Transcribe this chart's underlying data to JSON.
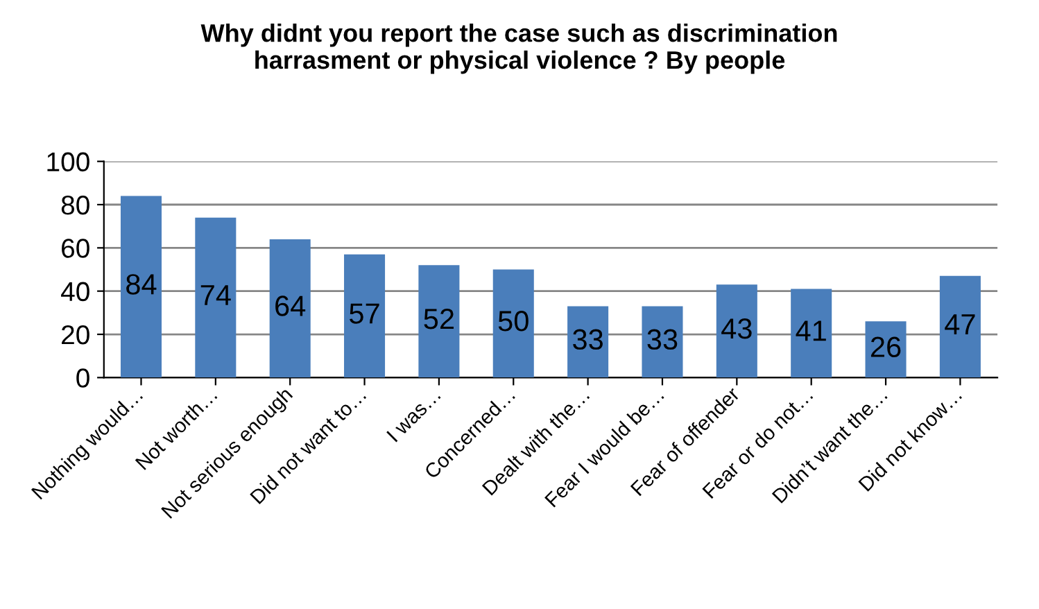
{
  "chart_data": {
    "type": "bar",
    "title": "Why didnt you report the case such as discrimination\nharrasment or physical violence ? By people",
    "categories": [
      "Nothing would…",
      "Not worth…",
      "Not serious enough",
      "Did not want to…",
      "I was…",
      "Concerned…",
      "Dealt with the…",
      "Fear I would be…",
      "Fear of offender",
      "Fear or do not…",
      "Didn’t want the…",
      "Did not know…"
    ],
    "values": [
      84,
      74,
      64,
      57,
      52,
      50,
      33,
      33,
      43,
      41,
      26,
      47
    ],
    "color": "#4a7ebb",
    "ylim": [
      0,
      100
    ],
    "yticks": [
      0,
      20,
      40,
      60,
      80,
      100
    ],
    "grid": "y",
    "data_labels": true,
    "legend": false
  }
}
